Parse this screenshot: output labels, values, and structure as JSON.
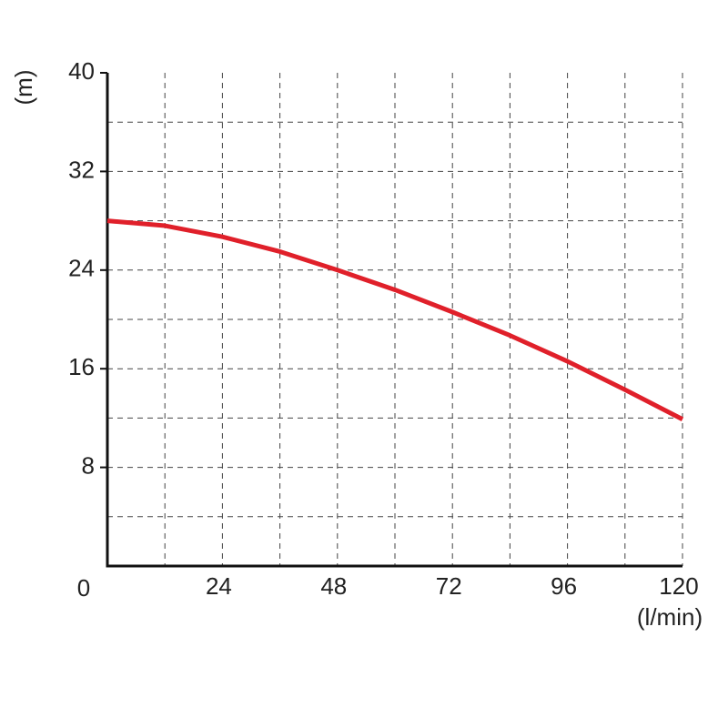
{
  "chart_data": {
    "type": "line",
    "x_label": "(l/min)",
    "y_label": "(m)",
    "x": [
      0,
      12,
      24,
      36,
      48,
      60,
      72,
      84,
      96,
      108,
      120
    ],
    "series": [
      {
        "color": "#e0202a",
        "values": [
          28,
          27.6,
          26.7,
          25.5,
          24,
          22.4,
          20.6,
          18.7,
          16.6,
          14.3,
          11.9
        ]
      }
    ],
    "xlim": [
      0,
      120
    ],
    "ylim": [
      0,
      40
    ],
    "xticks": [
      24,
      48,
      72,
      96,
      120
    ],
    "yticks": [
      0,
      8,
      16,
      24,
      32,
      40
    ],
    "xgrid": [
      12,
      24,
      36,
      48,
      60,
      72,
      84,
      96,
      108,
      120
    ],
    "ygrid": [
      4,
      8,
      12,
      16,
      20,
      24,
      28,
      32,
      36
    ],
    "grid": true
  }
}
